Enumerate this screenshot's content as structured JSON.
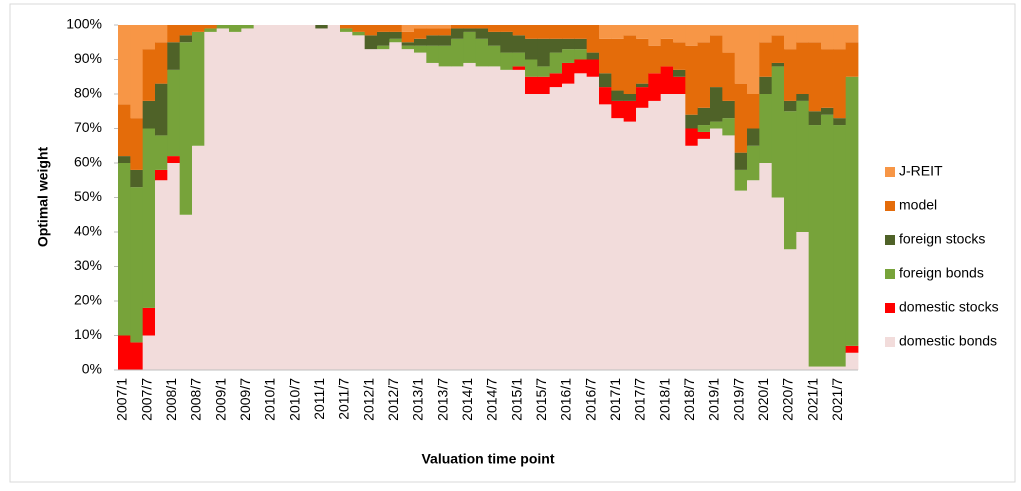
{
  "chart_data": {
    "type": "stacked_bar",
    "ylabel": "Optimal weight",
    "xlabel": "Valuation time point",
    "categories": [
      "2007/1",
      null,
      "2007/7",
      null,
      "2008/1",
      null,
      "2008/7",
      null,
      "2009/1",
      null,
      "2009/7",
      null,
      "2010/1",
      null,
      "2010/7",
      null,
      "2011/1",
      null,
      "2011/7",
      null,
      "2012/1",
      null,
      "2012/7",
      null,
      "2013/1",
      null,
      "2013/7",
      null,
      "2014/1",
      null,
      "2014/7",
      null,
      "2015/1",
      null,
      "2015/7",
      null,
      "2016/1",
      null,
      "2016/7",
      null,
      "2017/1",
      null,
      "2017/7",
      null,
      "2018/1",
      null,
      "2018/7",
      null,
      "2019/1",
      null,
      "2019/7",
      null,
      "2020/1",
      null,
      "2020/7",
      null,
      "2021/1",
      null,
      "2021/7",
      null
    ],
    "series": [
      {
        "name": "domestic bonds",
        "color": "#f2dcdb",
        "values": [
          0,
          0,
          10,
          55,
          60,
          45,
          65,
          98,
          99,
          98,
          99,
          100,
          100,
          100,
          100,
          100,
          99,
          100,
          98,
          97,
          93,
          93,
          95,
          93,
          92,
          89,
          88,
          88,
          89,
          88,
          88,
          87,
          87,
          80,
          80,
          82,
          83,
          86,
          85,
          77,
          73,
          72,
          76,
          78,
          80,
          80,
          65,
          67,
          70,
          68,
          52,
          55,
          60,
          50,
          35,
          40,
          1,
          1,
          1,
          5
        ]
      },
      {
        "name": "domestic stocks",
        "color": "#ff0000",
        "values": [
          10,
          8,
          8,
          3,
          2,
          0,
          0,
          0,
          0,
          0,
          0,
          0,
          0,
          0,
          0,
          0,
          0,
          0,
          0,
          0,
          0,
          0,
          0,
          0,
          0,
          0,
          0,
          0,
          0,
          0,
          0,
          0,
          1,
          5,
          5,
          4,
          6,
          4,
          5,
          5,
          5,
          6,
          6,
          8,
          8,
          5,
          5,
          2,
          0,
          0,
          0,
          0,
          0,
          0,
          0,
          0,
          0,
          0,
          0,
          2
        ]
      },
      {
        "name": "foreign bonds",
        "color": "#77a33a",
        "values": [
          50,
          45,
          52,
          10,
          25,
          50,
          33,
          1,
          1,
          2,
          1,
          0,
          0,
          0,
          0,
          0,
          0,
          0,
          1,
          1,
          0,
          1,
          1,
          1,
          2,
          5,
          6,
          8,
          9,
          8,
          6,
          5,
          4,
          5,
          3,
          6,
          4,
          3,
          0,
          0,
          0,
          0,
          0,
          0,
          0,
          0,
          0,
          2,
          2,
          5,
          6,
          10,
          20,
          38,
          40,
          38,
          70,
          73,
          70,
          78
        ]
      },
      {
        "name": "foreign stocks",
        "color": "#4f6228",
        "values": [
          2,
          5,
          8,
          15,
          8,
          2,
          0,
          0,
          0,
          0,
          0,
          0,
          0,
          0,
          0,
          0,
          1,
          0,
          0,
          0,
          4,
          4,
          2,
          1,
          2,
          3,
          3,
          3,
          1,
          3,
          4,
          6,
          5,
          6,
          8,
          4,
          3,
          3,
          2,
          4,
          3,
          2,
          1,
          0,
          0,
          2,
          4,
          5,
          10,
          5,
          5,
          5,
          5,
          1,
          3,
          2,
          4,
          2,
          2,
          0
        ]
      },
      {
        "name": "model",
        "color": "#e46c0a",
        "values": [
          15,
          15,
          15,
          12,
          5,
          3,
          2,
          1,
          0,
          0,
          0,
          0,
          0,
          0,
          0,
          0,
          0,
          0,
          1,
          2,
          3,
          2,
          2,
          3,
          3,
          2,
          2,
          1,
          1,
          1,
          2,
          2,
          3,
          4,
          4,
          4,
          4,
          4,
          8,
          10,
          15,
          17,
          13,
          8,
          8,
          8,
          20,
          19,
          15,
          14,
          20,
          10,
          10,
          8,
          15,
          15,
          20,
          17,
          20,
          10
        ]
      },
      {
        "name": "J-REIT",
        "color": "#f79646",
        "values": [
          23,
          27,
          7,
          5,
          0,
          0,
          0,
          0,
          0,
          0,
          0,
          0,
          0,
          0,
          0,
          0,
          0,
          0,
          0,
          0,
          0,
          0,
          0,
          2,
          1,
          1,
          1,
          0,
          0,
          0,
          0,
          0,
          0,
          0,
          0,
          0,
          0,
          0,
          0,
          4,
          4,
          3,
          4,
          6,
          4,
          5,
          6,
          5,
          3,
          8,
          17,
          20,
          5,
          3,
          7,
          5,
          5,
          7,
          7,
          5
        ]
      }
    ],
    "ylim": [
      0,
      100
    ],
    "yticks": [
      {
        "value": 0,
        "label": "0%"
      },
      {
        "value": 10,
        "label": "10%"
      },
      {
        "value": 20,
        "label": "20%"
      },
      {
        "value": 30,
        "label": "30%"
      },
      {
        "value": 40,
        "label": "40%"
      },
      {
        "value": 50,
        "label": "50%"
      },
      {
        "value": 60,
        "label": "60%"
      },
      {
        "value": 70,
        "label": "70%"
      },
      {
        "value": 80,
        "label": "80%"
      },
      {
        "value": 90,
        "label": "90%"
      },
      {
        "value": 100,
        "label": "100%"
      }
    ],
    "legend": "right"
  }
}
